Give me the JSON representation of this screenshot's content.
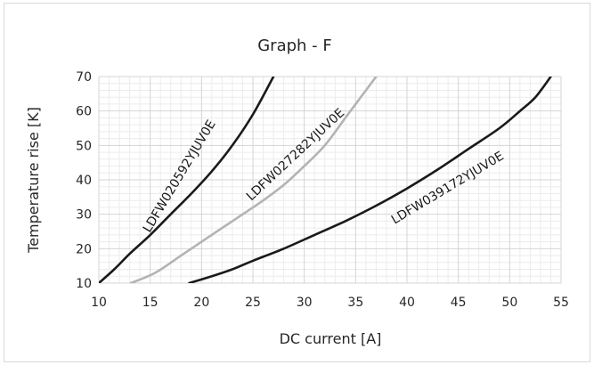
{
  "chart_data": {
    "type": "line",
    "title": "Graph - F",
    "xlabel": "DC current [A]",
    "ylabel": "Temperature rise [K]",
    "xlim": [
      10,
      55
    ],
    "ylim": [
      10,
      70
    ],
    "x_ticks": [
      10,
      15,
      20,
      25,
      30,
      35,
      40,
      45,
      50,
      55
    ],
    "y_ticks": [
      10,
      20,
      30,
      40,
      50,
      60,
      70
    ],
    "grid": true,
    "legend": "none",
    "series": [
      {
        "name": "LDFW020592YJUV0E",
        "color": "#1a1a1a",
        "points": [
          [
            10,
            10
          ],
          [
            11.5,
            14
          ],
          [
            13,
            18.5
          ],
          [
            15,
            24
          ],
          [
            17,
            30
          ],
          [
            19,
            36
          ],
          [
            21,
            42.5
          ],
          [
            23,
            50
          ],
          [
            25,
            59
          ],
          [
            27,
            70
          ]
        ]
      },
      {
        "name": "LDFW027282YJUV0E",
        "color": "#b3b3b3",
        "points": [
          [
            13.1,
            10
          ],
          [
            15.5,
            13
          ],
          [
            18,
            18
          ],
          [
            20,
            22
          ],
          [
            22,
            26
          ],
          [
            24,
            30
          ],
          [
            26,
            34
          ],
          [
            28,
            38.5
          ],
          [
            30,
            44
          ],
          [
            32,
            50
          ],
          [
            34,
            58
          ],
          [
            35.5,
            64
          ],
          [
            37,
            70
          ]
        ]
      },
      {
        "name": "LDFW039172YJUV0E",
        "color": "#1a1a1a",
        "points": [
          [
            18.8,
            10
          ],
          [
            21,
            12
          ],
          [
            23,
            14
          ],
          [
            25,
            16.5
          ],
          [
            28,
            20
          ],
          [
            31,
            24
          ],
          [
            34,
            28
          ],
          [
            37,
            32.5
          ],
          [
            40,
            37.5
          ],
          [
            43,
            43
          ],
          [
            46,
            49
          ],
          [
            49,
            55
          ],
          [
            51,
            60
          ],
          [
            52.5,
            64
          ],
          [
            54,
            70
          ]
        ]
      }
    ]
  }
}
